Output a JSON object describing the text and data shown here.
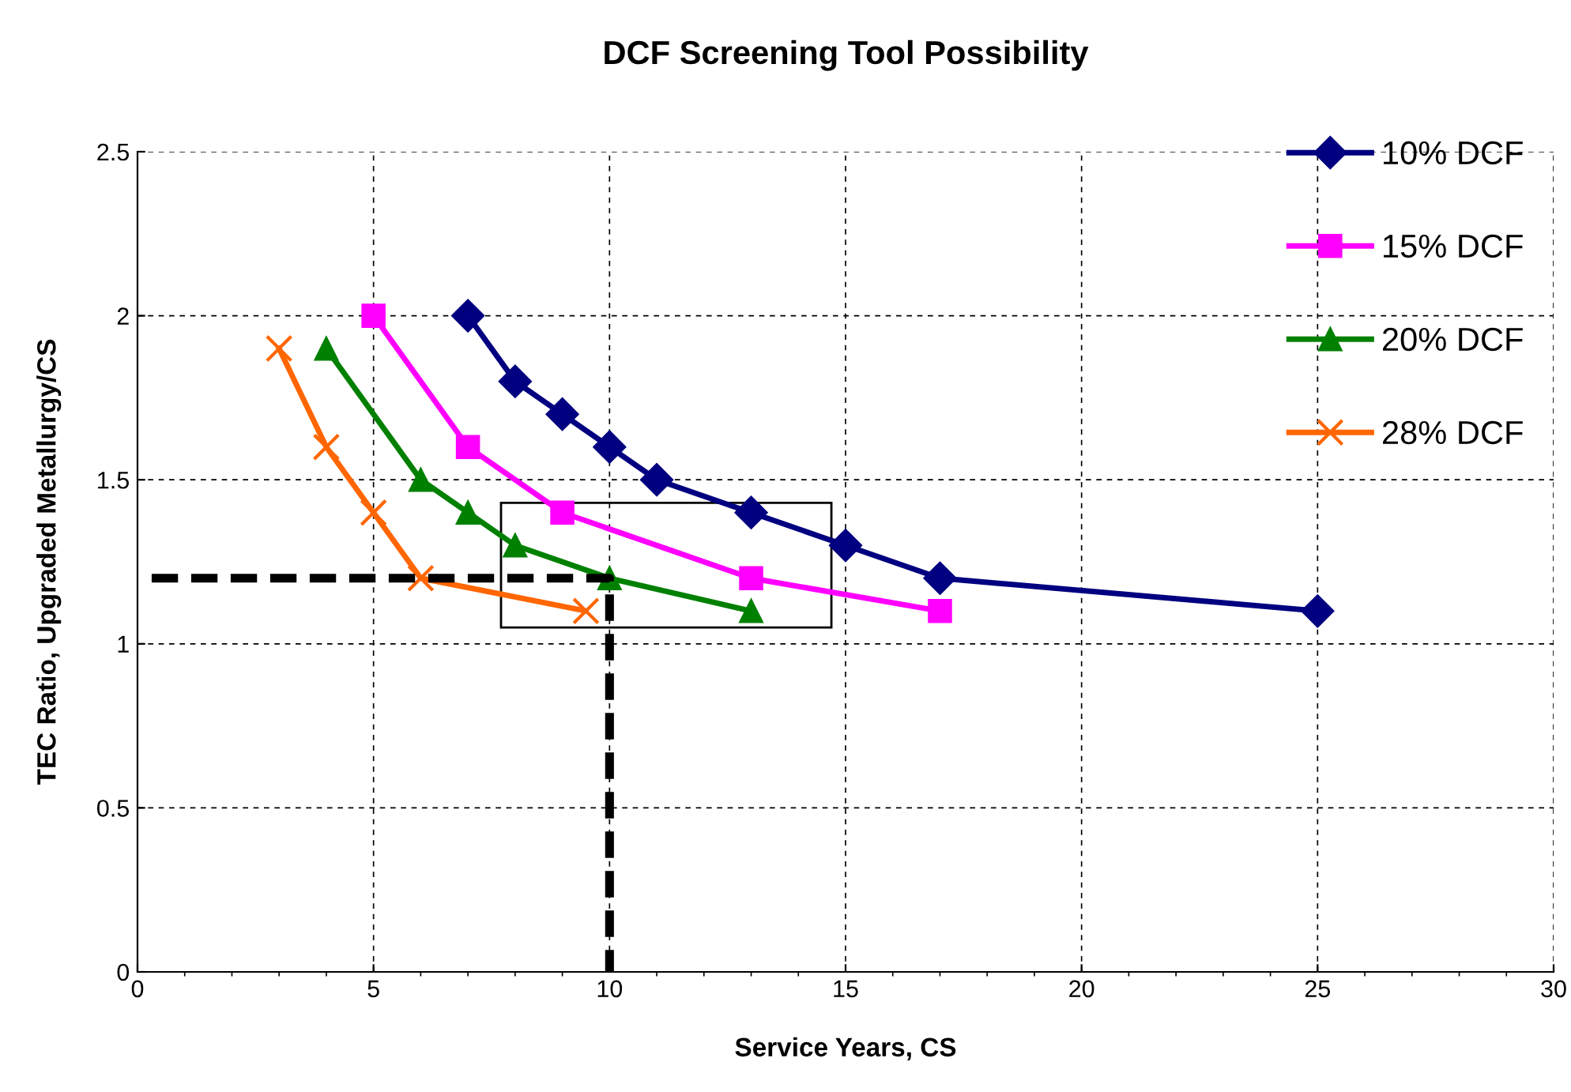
{
  "chart_data": {
    "type": "line",
    "title": "DCF Screening Tool Possibility",
    "xlabel": "Service Years, CS",
    "ylabel": "TEC Ratio, Upgraded Metallurgy/CS",
    "xlim": [
      0,
      30
    ],
    "xticks": [
      0,
      5,
      10,
      15,
      20,
      25,
      30
    ],
    "ylim": [
      0,
      2.5
    ],
    "yticks": [
      0,
      0.5,
      1,
      1.5,
      2,
      2.5
    ],
    "grid": true,
    "legend": "right",
    "line_style": "solid",
    "series": [
      {
        "name": "10% DCF",
        "color": "#000080",
        "marker": "diamond",
        "x": [
          7,
          8,
          9,
          10,
          11,
          13,
          15,
          17,
          25
        ],
        "values": [
          2,
          1.8,
          1.7,
          1.6,
          1.5,
          1.4,
          1.3,
          1.2,
          1.1
        ]
      },
      {
        "name": "15% DCF",
        "color": "#ff00ff",
        "marker": "square",
        "x": [
          5,
          7,
          9,
          13,
          17
        ],
        "values": [
          2,
          1.6,
          1.4,
          1.2,
          1.1
        ]
      },
      {
        "name": "20% DCF",
        "color": "#008000",
        "marker": "triangle",
        "x": [
          4,
          6,
          7,
          8,
          10,
          13
        ],
        "values": [
          1.9,
          1.5,
          1.4,
          1.3,
          1.2,
          1.1
        ]
      },
      {
        "name": "28% DCF",
        "color": "#ff6600",
        "marker": "cross",
        "x": [
          3,
          4,
          5,
          6,
          9.5
        ],
        "values": [
          1.9,
          1.6,
          1.4,
          1.2,
          1.1
        ]
      },
      {
        "color": "#000000",
        "marker": "none",
        "line_style": "dashed",
        "x": [
          0.3,
          10,
          10
        ],
        "values": [
          1.2,
          1.2,
          0
        ]
      }
    ]
  }
}
